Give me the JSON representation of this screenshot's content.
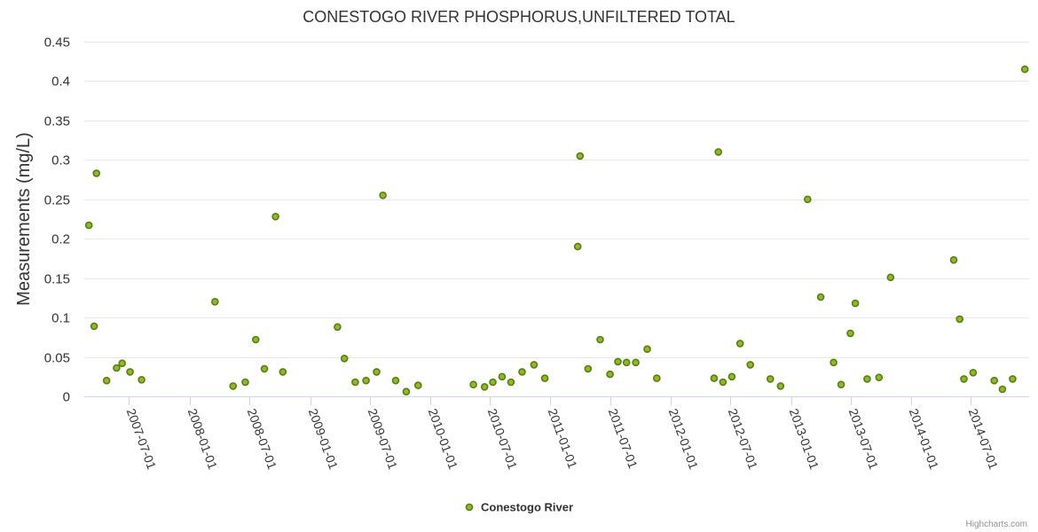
{
  "chart_data": {
    "type": "scatter",
    "title": "CONESTOGO RIVER PHOSPHORUS,UNFILTERED TOTAL",
    "ylabel": "Measurements (mg/L)",
    "xlabel": "",
    "ylim": [
      0,
      0.45
    ],
    "yticks": [
      "0",
      "0.05",
      "0.1",
      "0.15",
      "0.2",
      "0.25",
      "0.3",
      "0.35",
      "0.4",
      "0.45"
    ],
    "xlim": [
      "2007-02-15",
      "2014-12-25"
    ],
    "xticks": [
      "2007-07-01",
      "2008-01-01",
      "2008-07-01",
      "2009-01-01",
      "2009-07-01",
      "2010-01-01",
      "2010-07-01",
      "2011-01-01",
      "2011-07-01",
      "2012-01-01",
      "2012-07-01",
      "2013-01-01",
      "2013-07-01",
      "2014-01-01",
      "2014-07-01"
    ],
    "grid": true,
    "legend": "bottom-center",
    "credits": "Highcharts.com",
    "series": [
      {
        "name": "Conestogo River",
        "color": "#8bbc21",
        "points": [
          {
            "x": "2007-03-01",
            "y": 0.217
          },
          {
            "x": "2007-03-17",
            "y": 0.089
          },
          {
            "x": "2007-03-24",
            "y": 0.283
          },
          {
            "x": "2007-04-24",
            "y": 0.02
          },
          {
            "x": "2007-05-24",
            "y": 0.036
          },
          {
            "x": "2007-06-10",
            "y": 0.042
          },
          {
            "x": "2007-07-04",
            "y": 0.031
          },
          {
            "x": "2007-08-08",
            "y": 0.021
          },
          {
            "x": "2008-03-18",
            "y": 0.12
          },
          {
            "x": "2008-05-12",
            "y": 0.013
          },
          {
            "x": "2008-06-18",
            "y": 0.018
          },
          {
            "x": "2008-07-20",
            "y": 0.072
          },
          {
            "x": "2008-08-15",
            "y": 0.035
          },
          {
            "x": "2008-09-18",
            "y": 0.228
          },
          {
            "x": "2008-10-10",
            "y": 0.031
          },
          {
            "x": "2009-03-25",
            "y": 0.088
          },
          {
            "x": "2009-04-15",
            "y": 0.048
          },
          {
            "x": "2009-05-18",
            "y": 0.018
          },
          {
            "x": "2009-06-20",
            "y": 0.02
          },
          {
            "x": "2009-07-22",
            "y": 0.031
          },
          {
            "x": "2009-08-10",
            "y": 0.255
          },
          {
            "x": "2009-09-18",
            "y": 0.02
          },
          {
            "x": "2009-10-20",
            "y": 0.006
          },
          {
            "x": "2009-11-25",
            "y": 0.014
          },
          {
            "x": "2010-05-12",
            "y": 0.015
          },
          {
            "x": "2010-06-15",
            "y": 0.012
          },
          {
            "x": "2010-07-10",
            "y": 0.018
          },
          {
            "x": "2010-08-07",
            "y": 0.025
          },
          {
            "x": "2010-09-03",
            "y": 0.018
          },
          {
            "x": "2010-10-07",
            "y": 0.031
          },
          {
            "x": "2010-11-12",
            "y": 0.04
          },
          {
            "x": "2010-12-15",
            "y": 0.023
          },
          {
            "x": "2011-03-25",
            "y": 0.19
          },
          {
            "x": "2011-04-01",
            "y": 0.305
          },
          {
            "x": "2011-04-25",
            "y": 0.035
          },
          {
            "x": "2011-06-01",
            "y": 0.072
          },
          {
            "x": "2011-07-01",
            "y": 0.028
          },
          {
            "x": "2011-07-25",
            "y": 0.044
          },
          {
            "x": "2011-08-20",
            "y": 0.043
          },
          {
            "x": "2011-09-17",
            "y": 0.043
          },
          {
            "x": "2011-10-22",
            "y": 0.06
          },
          {
            "x": "2011-11-20",
            "y": 0.023
          },
          {
            "x": "2012-05-12",
            "y": 0.023
          },
          {
            "x": "2012-05-25",
            "y": 0.31
          },
          {
            "x": "2012-06-08",
            "y": 0.018
          },
          {
            "x": "2012-07-05",
            "y": 0.025
          },
          {
            "x": "2012-07-30",
            "y": 0.067
          },
          {
            "x": "2012-08-30",
            "y": 0.04
          },
          {
            "x": "2012-10-30",
            "y": 0.022
          },
          {
            "x": "2012-11-30",
            "y": 0.013
          },
          {
            "x": "2013-02-20",
            "y": 0.25
          },
          {
            "x": "2013-04-01",
            "y": 0.126
          },
          {
            "x": "2013-05-10",
            "y": 0.043
          },
          {
            "x": "2013-06-02",
            "y": 0.015
          },
          {
            "x": "2013-06-30",
            "y": 0.08
          },
          {
            "x": "2013-07-15",
            "y": 0.118
          },
          {
            "x": "2013-08-20",
            "y": 0.022
          },
          {
            "x": "2013-09-25",
            "y": 0.024
          },
          {
            "x": "2013-10-30",
            "y": 0.151
          },
          {
            "x": "2014-05-10",
            "y": 0.173
          },
          {
            "x": "2014-05-28",
            "y": 0.098
          },
          {
            "x": "2014-06-10",
            "y": 0.022
          },
          {
            "x": "2014-07-08",
            "y": 0.03
          },
          {
            "x": "2014-09-10",
            "y": 0.02
          },
          {
            "x": "2014-10-05",
            "y": 0.009
          },
          {
            "x": "2014-11-05",
            "y": 0.022
          },
          {
            "x": "2014-12-12",
            "y": 0.415
          }
        ]
      }
    ]
  }
}
